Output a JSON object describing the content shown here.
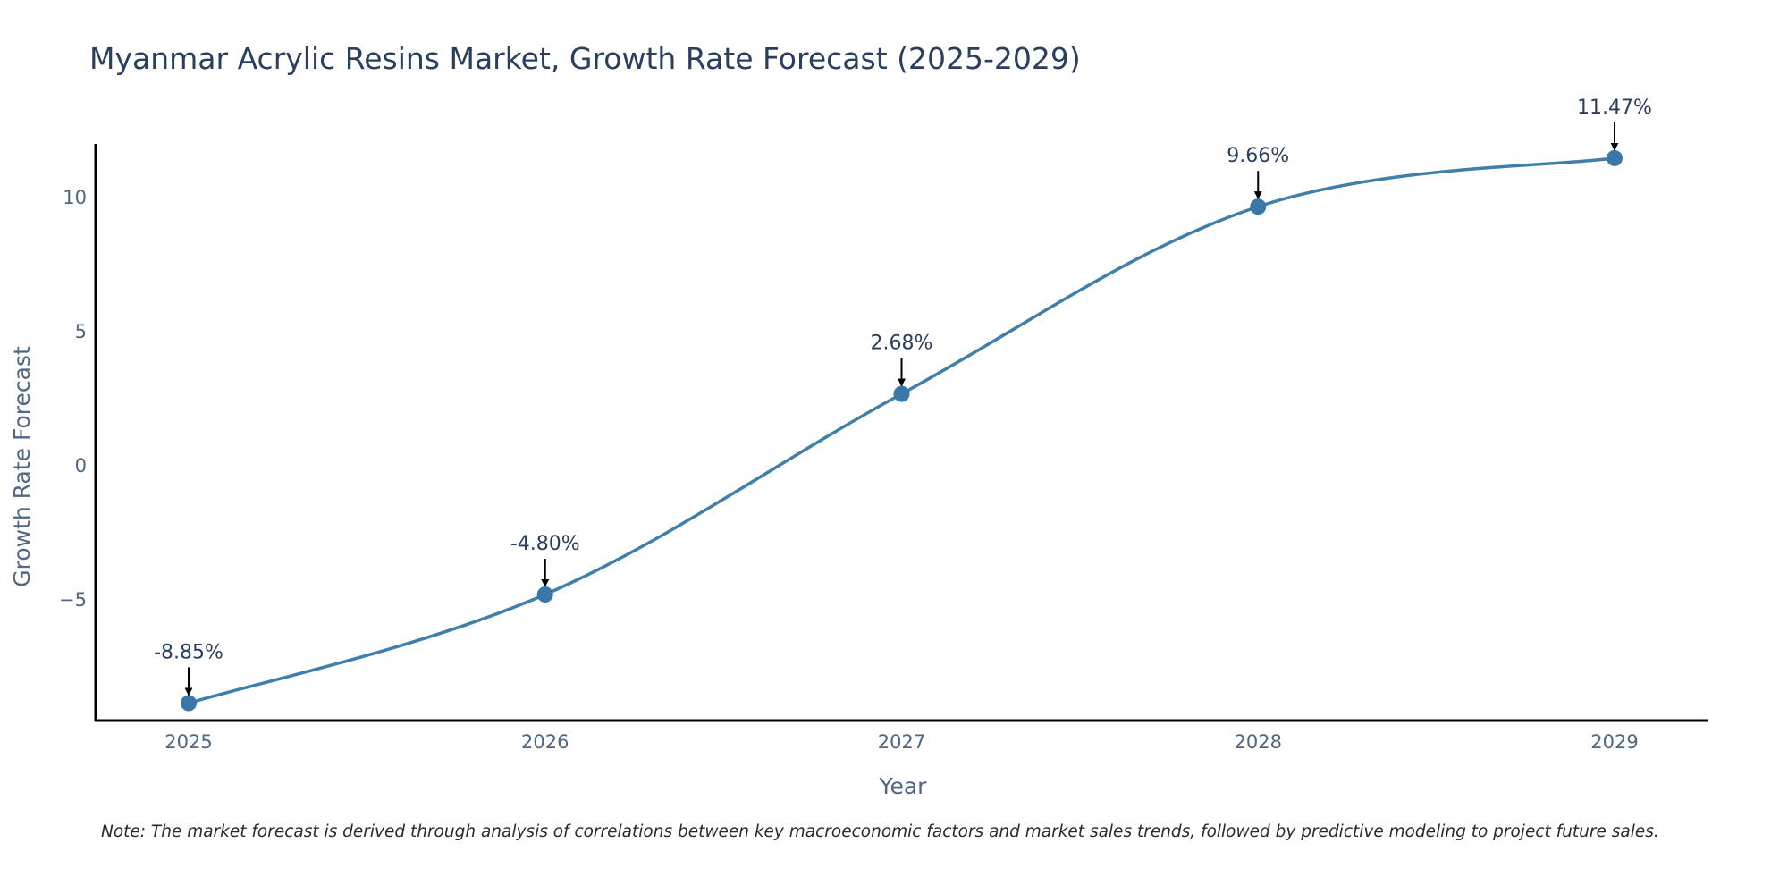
{
  "chart_data": {
    "type": "line",
    "title": "Myanmar Acrylic Resins Market, Growth Rate Forecast (2025-2029)",
    "xlabel": "Year",
    "ylabel": "Growth Rate Forecast",
    "categories": [
      "2025",
      "2026",
      "2027",
      "2028",
      "2029"
    ],
    "series": [
      {
        "name": "Growth Rate Forecast",
        "values": [
          -8.85,
          -4.8,
          2.68,
          9.66,
          11.47
        ]
      }
    ],
    "data_labels": [
      "-8.85%",
      "-4.80%",
      "2.68%",
      "9.66%",
      "11.47%"
    ],
    "y_ticks": [
      10,
      5,
      0,
      -5
    ],
    "y_tick_labels": [
      "10",
      "5",
      "0",
      "−5"
    ],
    "ylim": [
      -9.5,
      12
    ],
    "grid": false,
    "line_shape": "spline",
    "line_color": "#3f7fa9",
    "marker_color": "#3a76a6",
    "annotation_arrow_color": "#000000",
    "note": "Note: The market forecast is derived through analysis of correlations between key macroeconomic factors and market sales trends, followed by predictive modeling to project future sales."
  }
}
